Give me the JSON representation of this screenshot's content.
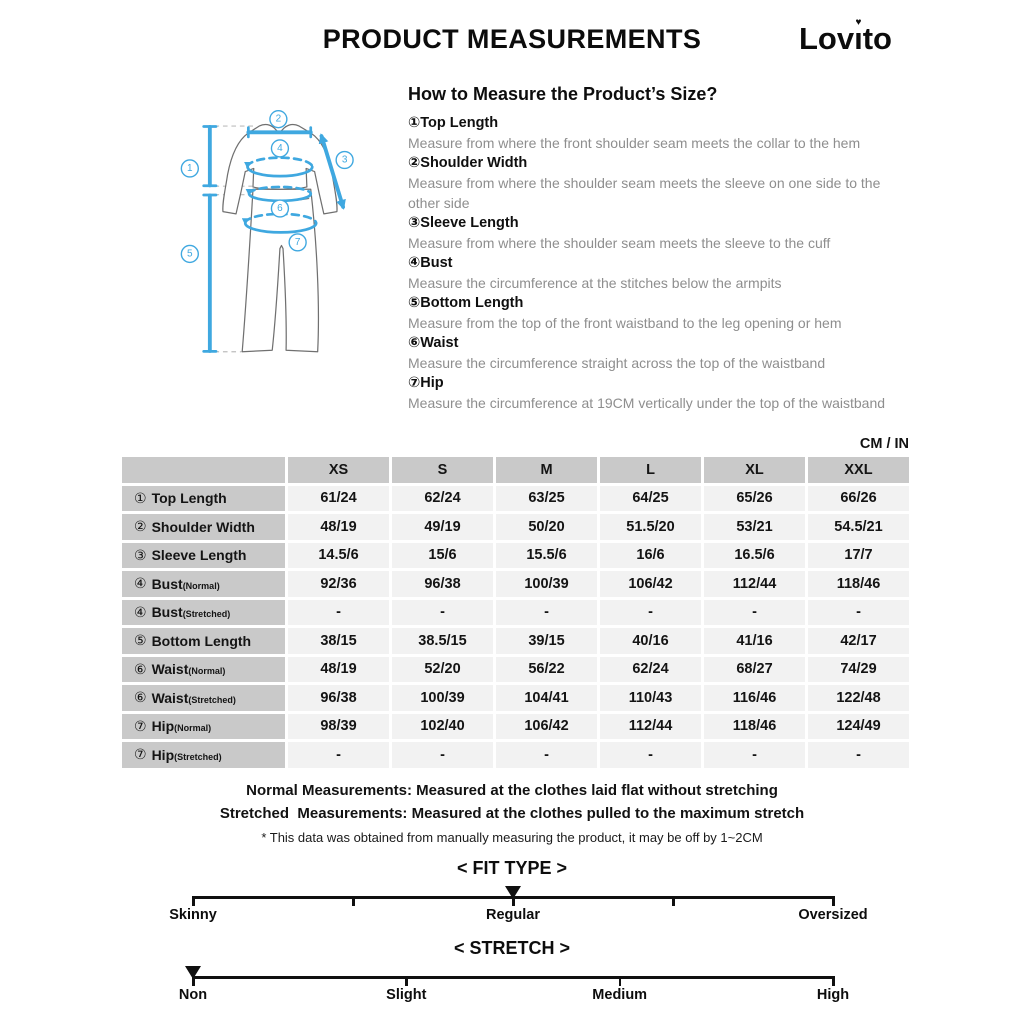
{
  "header": {
    "title": "PRODUCT MEASUREMENTS",
    "brand": "Lovito",
    "brand_display": {
      "pre": "Lov",
      "dotless_i": "ı",
      "heart": "♥",
      "post": "to"
    }
  },
  "how_to": {
    "heading": "How to Measure the Product’s Size?",
    "items": [
      {
        "num": "①",
        "label": "Top Length",
        "desc": "Measure from where the front shoulder seam meets the collar to the hem"
      },
      {
        "num": "②",
        "label": "Shoulder Width",
        "desc": "Measure from where the shoulder seam meets the sleeve on one side to the other side"
      },
      {
        "num": "③",
        "label": "Sleeve Length",
        "desc": "Measure from where the shoulder seam meets the sleeve to the cuff"
      },
      {
        "num": "④",
        "label": "Bust",
        "desc": "Measure the circumference at the stitches below the armpits"
      },
      {
        "num": "⑤",
        "label": "Bottom Length",
        "desc": "Measure from the top of the front waistband to the leg opening or hem"
      },
      {
        "num": "⑥",
        "label": "Waist",
        "desc": "Measure the circumference straight across the top of the waistband"
      },
      {
        "num": "⑦",
        "label": "Hip",
        "desc": "Measure the circumference at 19CM vertically under the top of the waistband"
      }
    ]
  },
  "unit_label": "CM / IN",
  "size_table": {
    "columns": [
      "XS",
      "S",
      "M",
      "L",
      "XL",
      "XXL"
    ],
    "rows": [
      {
        "num": "①",
        "label": "Top Length",
        "suffix": "",
        "values": [
          "61/24",
          "62/24",
          "63/25",
          "64/25",
          "65/26",
          "66/26"
        ]
      },
      {
        "num": "②",
        "label": "Shoulder Width",
        "suffix": "",
        "values": [
          "48/19",
          "49/19",
          "50/20",
          "51.5/20",
          "53/21",
          "54.5/21"
        ]
      },
      {
        "num": "③",
        "label": "Sleeve Length",
        "suffix": "",
        "values": [
          "14.5/6",
          "15/6",
          "15.5/6",
          "16/6",
          "16.5/6",
          "17/7"
        ]
      },
      {
        "num": "④",
        "label": "Bust",
        "suffix": "(Normal)",
        "values": [
          "92/36",
          "96/38",
          "100/39",
          "106/42",
          "112/44",
          "118/46"
        ]
      },
      {
        "num": "④",
        "label": "Bust",
        "suffix": "(Stretched)",
        "values": [
          "-",
          "-",
          "-",
          "-",
          "-",
          "-"
        ]
      },
      {
        "num": "⑤",
        "label": "Bottom Length",
        "suffix": "",
        "values": [
          "38/15",
          "38.5/15",
          "39/15",
          "40/16",
          "41/16",
          "42/17"
        ]
      },
      {
        "num": "⑥",
        "label": "Waist",
        "suffix": "(Normal)",
        "values": [
          "48/19",
          "52/20",
          "56/22",
          "62/24",
          "68/27",
          "74/29"
        ]
      },
      {
        "num": "⑥",
        "label": "Waist",
        "suffix": "(Stretched)",
        "values": [
          "96/38",
          "100/39",
          "104/41",
          "110/43",
          "116/46",
          "122/48"
        ]
      },
      {
        "num": "⑦",
        "label": "Hip",
        "suffix": "(Normal)",
        "values": [
          "98/39",
          "102/40",
          "106/42",
          "112/44",
          "118/46",
          "124/49"
        ]
      },
      {
        "num": "⑦",
        "label": "Hip",
        "suffix": "(Stretched)",
        "values": [
          "-",
          "-",
          "-",
          "-",
          "-",
          "-"
        ]
      }
    ]
  },
  "notes": {
    "line1": "Normal Measurements: Measured at the clothes laid flat without stretching",
    "line2": "Stretched  Measurements: Measured at the clothes pulled to the maximum stretch",
    "line3": "* This data was obtained from manually measuring the product, it may be off by 1~2CM"
  },
  "fit_scale": {
    "title": "< FIT TYPE >",
    "ticks_pct": [
      0,
      25,
      50,
      75,
      100
    ],
    "marker_pct": 50,
    "labels": [
      {
        "text": "Skinny",
        "pct": 0
      },
      {
        "text": "Regular",
        "pct": 50
      },
      {
        "text": "Oversized",
        "pct": 100
      }
    ]
  },
  "stretch_scale": {
    "title": "< STRETCH >",
    "ticks_pct": [
      0,
      33.33,
      66.67,
      100
    ],
    "marker_pct": 0,
    "labels": [
      {
        "text": "Non",
        "pct": 0
      },
      {
        "text": "Slight",
        "pct": 33.33
      },
      {
        "text": "Medium",
        "pct": 66.67
      },
      {
        "text": "High",
        "pct": 100
      }
    ]
  },
  "diagram": {
    "accent_color": "#3FA8E0",
    "outline_color": "#707070",
    "callouts": [
      "1",
      "2",
      "3",
      "4",
      "5",
      "6",
      "7"
    ]
  }
}
